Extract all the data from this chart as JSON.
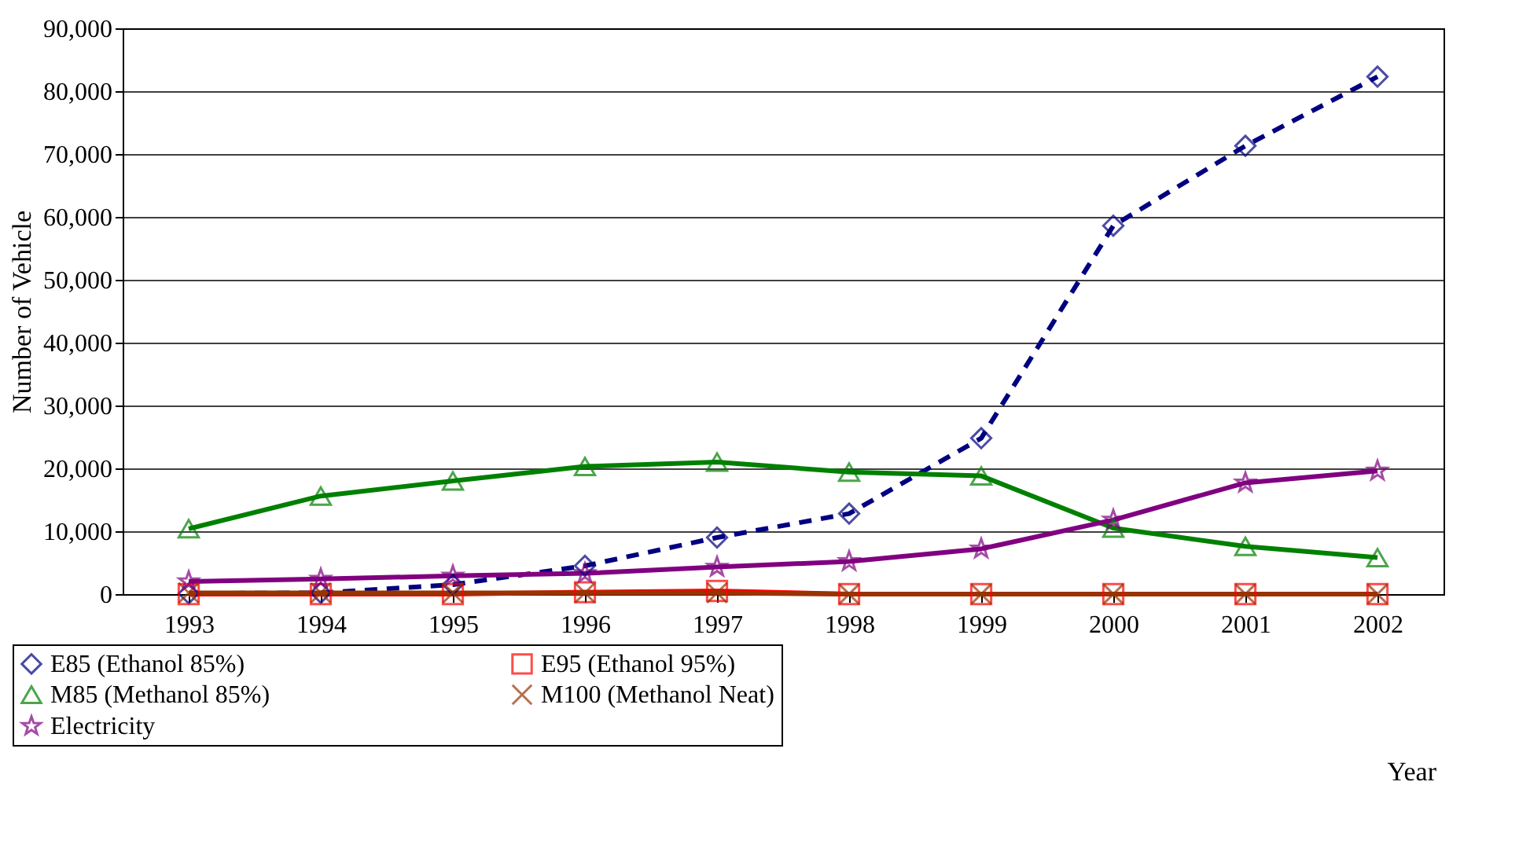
{
  "chart_data": {
    "type": "line",
    "ylabel": "Number of Vehicle",
    "xlabel": "Year",
    "categories": [
      "1993",
      "1994",
      "1995",
      "1996",
      "1997",
      "1998",
      "1999",
      "2000",
      "2001",
      "2002"
    ],
    "series": [
      {
        "name": "E85 (Ethanol 85%)",
        "color": "#000080",
        "marker": "diamond",
        "line_style": "dashed",
        "values": [
          100,
          200,
          1500,
          4500,
          9000,
          12800,
          24800,
          58600,
          71300,
          82300
        ]
      },
      {
        "name": "E95 (Ethanol 95%)",
        "color": "#ff0000",
        "marker": "square",
        "line_style": "solid",
        "values": [
          0,
          0,
          0,
          300,
          500,
          0,
          0,
          0,
          0,
          0
        ]
      },
      {
        "name": "M85 (Methanol 85%)",
        "color": "#008000",
        "marker": "triangle",
        "line_style": "solid",
        "values": [
          10400,
          15600,
          18000,
          20300,
          21000,
          19400,
          18800,
          10500,
          7600,
          5800
        ]
      },
      {
        "name": "M100 (Methanol Neat)",
        "color": "#993300",
        "marker": "cross",
        "line_style": "solid",
        "values": [
          200,
          200,
          200,
          200,
          200,
          0,
          0,
          0,
          0,
          0
        ]
      },
      {
        "name": "Electricity",
        "color": "#800080",
        "marker": "star",
        "line_style": "solid",
        "values": [
          2000,
          2400,
          2900,
          3300,
          4300,
          5200,
          7200,
          11800,
          17700,
          19600
        ]
      }
    ],
    "ylim": [
      0,
      90000
    ],
    "yticks": [
      0,
      {
        "value": 10000,
        "label": "10,000"
      },
      {
        "value": 20000,
        "label": "20,000"
      },
      {
        "value": 30000,
        "label": "30,000"
      },
      {
        "value": 40000,
        "label": "40,000"
      },
      {
        "value": 50000,
        "label": "50,000"
      },
      {
        "value": 60000,
        "label": "60,000"
      },
      {
        "value": 70000,
        "label": "70,000"
      },
      {
        "value": 80000,
        "label": "80,000"
      },
      {
        "value": 90000,
        "label": "90,000"
      }
    ],
    "grid": "y",
    "legend": "bottom"
  }
}
